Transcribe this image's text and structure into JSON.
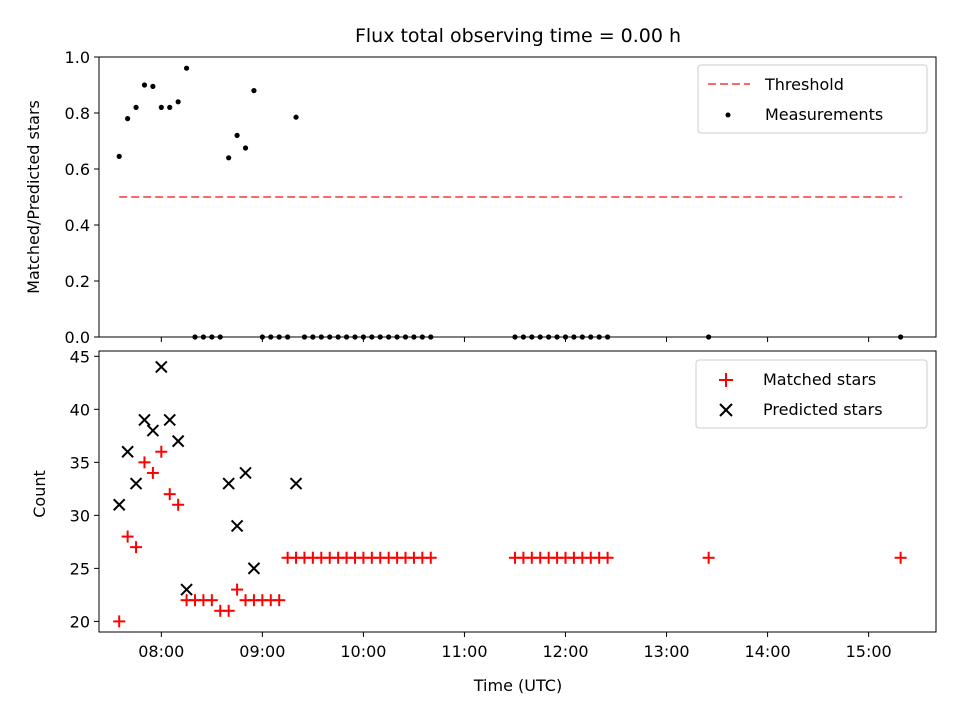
{
  "figure": {
    "title": "Flux total observing time = 0.00 h"
  },
  "chart_data": [
    {
      "type": "scatter",
      "ylabel": "Matched/Predicted stars",
      "xlabel": "",
      "xlim": [
        "07:23",
        "15:40"
      ],
      "ylim": [
        0,
        1
      ],
      "yticks": [
        0.0,
        0.2,
        0.4,
        0.6,
        0.8,
        1.0
      ],
      "yticklabels": [
        "0.0",
        "0.2",
        "0.4",
        "0.6",
        "0.8",
        "1.0"
      ],
      "grid": false,
      "legend_position": "upper right",
      "threshold": {
        "name": "Threshold",
        "color": "#ff6666",
        "style": "dashed",
        "y": 0.5,
        "x": [
          "07:35",
          "15:20"
        ]
      },
      "series": [
        {
          "name": "Measurements",
          "marker": "dot",
          "color": "#000000",
          "x": [
            "07:35",
            "07:40",
            "07:45",
            "07:50",
            "07:55",
            "08:00",
            "08:05",
            "08:10",
            "08:15",
            "08:20",
            "08:25",
            "08:30",
            "08:35",
            "08:40",
            "08:45",
            "08:50",
            "08:55",
            "09:00",
            "09:05",
            "09:10",
            "09:15",
            "09:20",
            "09:25",
            "09:30",
            "09:35",
            "09:40",
            "09:45",
            "09:50",
            "09:55",
            "10:00",
            "10:05",
            "10:10",
            "10:15",
            "10:20",
            "10:25",
            "10:30",
            "10:35",
            "10:40",
            "11:30",
            "11:35",
            "11:40",
            "11:45",
            "11:50",
            "11:55",
            "12:00",
            "12:05",
            "12:10",
            "12:15",
            "12:20",
            "12:25",
            "13:25",
            "15:19"
          ],
          "y": [
            0.645,
            0.78,
            0.82,
            0.9,
            0.895,
            0.82,
            0.82,
            0.84,
            0.96,
            0.0,
            0.0,
            0.0,
            0.0,
            0.64,
            0.72,
            0.675,
            0.88,
            0.0,
            0.0,
            0.0,
            0.0,
            0.785,
            0.0,
            0.0,
            0.0,
            0.0,
            0.0,
            0.0,
            0.0,
            0.0,
            0.0,
            0.0,
            0.0,
            0.0,
            0.0,
            0.0,
            0.0,
            0.0,
            0.0,
            0.0,
            0.0,
            0.0,
            0.0,
            0.0,
            0.0,
            0.0,
            0.0,
            0.0,
            0.0,
            0.0,
            0.0,
            0.0
          ]
        }
      ]
    },
    {
      "type": "scatter",
      "ylabel": "Count",
      "xlabel": "Time (UTC)",
      "xlim": [
        "07:23",
        "15:40"
      ],
      "ylim": [
        19,
        45.5
      ],
      "xticks": [
        "08:00",
        "09:00",
        "10:00",
        "11:00",
        "12:00",
        "13:00",
        "14:00",
        "15:00"
      ],
      "yticks": [
        20,
        25,
        30,
        35,
        40,
        45
      ],
      "yticklabels": [
        "20",
        "25",
        "30",
        "35",
        "40",
        "45"
      ],
      "grid": false,
      "legend_position": "upper right",
      "series": [
        {
          "name": "Matched stars",
          "marker": "plus",
          "color": "#ff0000",
          "x": [
            "07:35",
            "07:40",
            "07:45",
            "07:50",
            "07:55",
            "08:00",
            "08:05",
            "08:10",
            "08:15",
            "08:20",
            "08:25",
            "08:30",
            "08:35",
            "08:40",
            "08:45",
            "08:50",
            "08:55",
            "09:00",
            "09:05",
            "09:10",
            "09:15",
            "09:20",
            "09:25",
            "09:30",
            "09:35",
            "09:40",
            "09:45",
            "09:50",
            "09:55",
            "10:00",
            "10:05",
            "10:10",
            "10:15",
            "10:20",
            "10:25",
            "10:30",
            "10:35",
            "10:40",
            "11:30",
            "11:35",
            "11:40",
            "11:45",
            "11:50",
            "11:55",
            "12:00",
            "12:05",
            "12:10",
            "12:15",
            "12:20",
            "12:25",
            "13:25",
            "15:19"
          ],
          "y": [
            20,
            28,
            27,
            35,
            34,
            36,
            32,
            31,
            22,
            22,
            22,
            22,
            21,
            21,
            23,
            22,
            22,
            22,
            22,
            22,
            26,
            26,
            26,
            26,
            26,
            26,
            26,
            26,
            26,
            26,
            26,
            26,
            26,
            26,
            26,
            26,
            26,
            26,
            26,
            26,
            26,
            26,
            26,
            26,
            26,
            26,
            26,
            26,
            26,
            26,
            26,
            26
          ]
        },
        {
          "name": "Predicted stars",
          "marker": "x",
          "color": "#000000",
          "x": [
            "07:35",
            "07:40",
            "07:45",
            "07:50",
            "07:55",
            "08:00",
            "08:05",
            "08:10",
            "08:15",
            "08:40",
            "08:45",
            "08:50",
            "08:55",
            "09:20"
          ],
          "y": [
            31,
            36,
            33,
            39,
            38,
            44,
            39,
            37,
            23,
            33,
            29,
            34,
            25,
            33
          ]
        }
      ]
    }
  ]
}
